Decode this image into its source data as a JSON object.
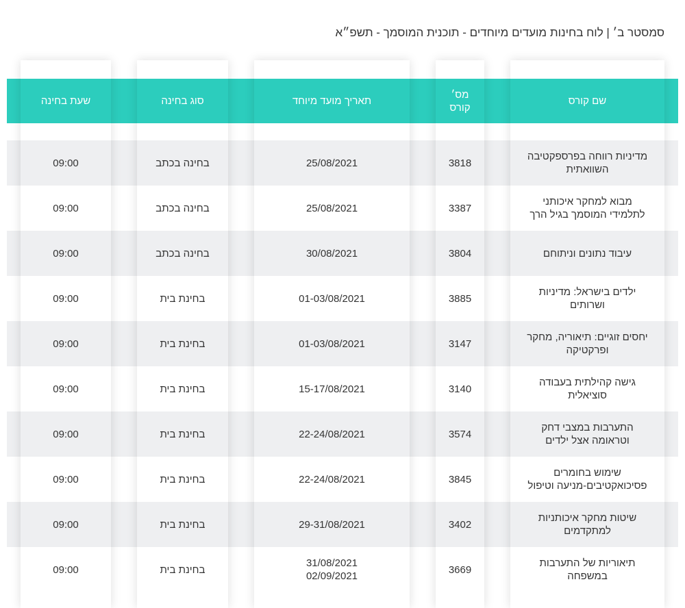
{
  "title": "סמסטר ב׳ | לוח בחינות מועדים מיוחדים - תוכנית המוסמך - תשפ״א",
  "colors": {
    "header_bg": "#2ccdbd",
    "row_alt": "#eeeff1"
  },
  "table": {
    "headers": [
      "שם קורס",
      "מס׳ קורס",
      "תאריך מועד מיוחד",
      "סוג בחינה",
      "שעת בחינה"
    ],
    "rows": [
      {
        "name": "מדיניות רווחה בפרספקטיבה השוואתית",
        "number": "3818",
        "date": "25/08/2021",
        "type": "בחינה בכתב",
        "time": "09:00"
      },
      {
        "name": "מבוא למחקר איכותני לתלמידי המוסמך בגיל הרך",
        "number": "3387",
        "date": "25/08/2021",
        "type": "בחינה בכתב",
        "time": "09:00"
      },
      {
        "name": "עיבוד נתונים וניתוחם",
        "number": "3804",
        "date": "30/08/2021",
        "type": "בחינה בכתב",
        "time": "09:00"
      },
      {
        "name": "ילדים בישראל: מדיניות ושרותים",
        "number": "3885",
        "date": "01-03/08/2021",
        "type": "בחינת בית",
        "time": "09:00"
      },
      {
        "name": "יחסים זוגיים: תיאוריה, מחקר ופרקטיקה",
        "number": "3147",
        "date": "01-03/08/2021",
        "type": "בחינת בית",
        "time": "09:00"
      },
      {
        "name": "גישה קהילתית בעבודה סוציאלית",
        "number": "3140",
        "date": "15-17/08/2021",
        "type": "בחינת בית",
        "time": "09:00"
      },
      {
        "name": "התערבות במצבי דחק וטראומה אצל ילדים",
        "number": "3574",
        "date": "22-24/08/2021",
        "type": "בחינת בית",
        "time": "09:00"
      },
      {
        "name": "שימוש בחומרים פסיכואקטיבים-מניעה וטיפול",
        "number": "3845",
        "date": "22-24/08/2021",
        "type": "בחינת בית",
        "time": "09:00"
      },
      {
        "name": "שיטות מחקר איכותניות למתקדמים",
        "number": "3402",
        "date": "29-31/08/2021",
        "type": "בחינת בית",
        "time": "09:00"
      },
      {
        "name": "תיאוריות של התערבות במשפחה",
        "number": "3669",
        "date": "31/08/2021 02/09/2021",
        "type": "בחינת בית",
        "time": "09:00"
      }
    ]
  }
}
